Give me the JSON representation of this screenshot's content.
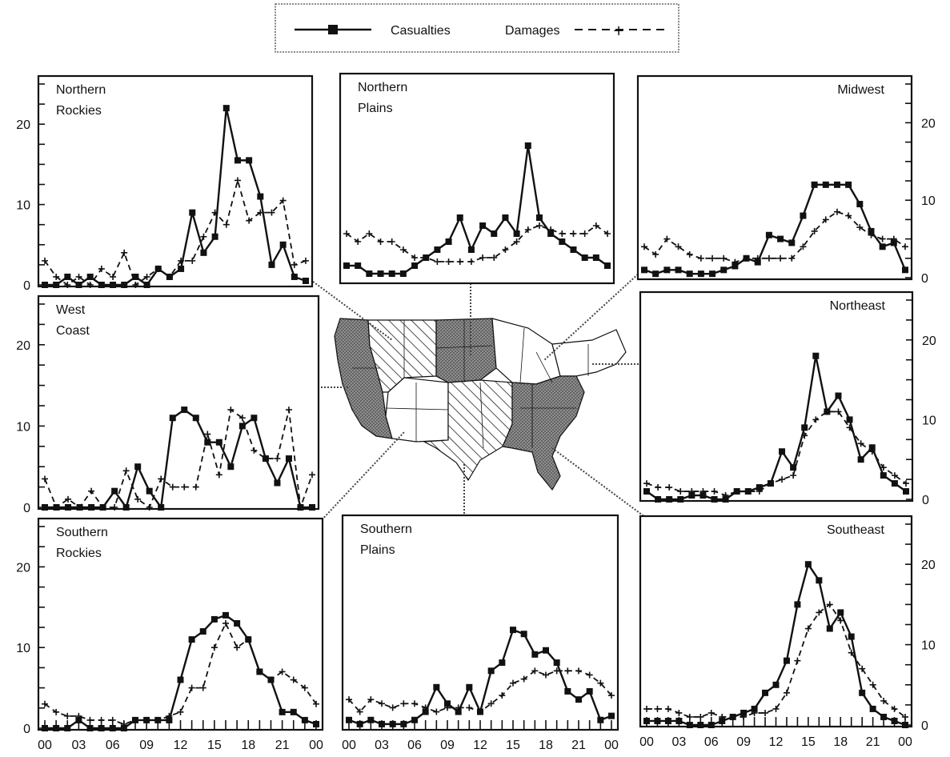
{
  "legend": {
    "casualties": "Casualties",
    "damages": "Damages",
    "position": "top-center"
  },
  "chart_data": [
    {
      "type": "line",
      "title": "Northern Rockies",
      "title_lines": [
        "Northern",
        "Rockies"
      ],
      "hours": [
        0,
        1,
        2,
        3,
        4,
        5,
        6,
        7,
        8,
        9,
        10,
        11,
        12,
        13,
        14,
        15,
        16,
        17,
        18,
        19,
        20,
        21,
        22,
        23
      ],
      "x_tick_labels": [],
      "y_ticks": [
        0,
        10,
        20
      ],
      "y_axis_side": "left",
      "ylim": [
        0,
        25
      ],
      "series": [
        {
          "name": "Casualties",
          "values": [
            0,
            0,
            1,
            0,
            1,
            0,
            0,
            0,
            1,
            0,
            2,
            1,
            2,
            9,
            4,
            6,
            22,
            15.5,
            15.5,
            11,
            2.5,
            5,
            1,
            0.5
          ]
        },
        {
          "name": "Damages",
          "values": [
            3,
            1,
            0,
            1,
            0,
            2,
            1,
            4,
            0,
            1,
            2,
            1,
            3,
            3,
            6,
            9,
            7.5,
            13,
            8,
            9,
            9,
            10.5,
            2.5,
            3
          ]
        }
      ]
    },
    {
      "type": "line",
      "title": "Northern Plains",
      "title_lines": [
        "Northern",
        "Plains"
      ],
      "hours": [
        0,
        1,
        2,
        3,
        4,
        5,
        6,
        7,
        8,
        9,
        10,
        11,
        12,
        13,
        14,
        15,
        16,
        17,
        18,
        19,
        20,
        21,
        22,
        23
      ],
      "x_tick_labels": [],
      "y_ticks": [],
      "y_axis_side": "none",
      "ylim": [
        0,
        25
      ],
      "series": [
        {
          "name": "Casualties",
          "values": [
            2,
            2,
            1,
            1,
            1,
            1,
            2,
            3,
            4,
            5,
            8,
            4,
            7,
            6,
            8,
            6,
            17,
            8,
            6,
            5,
            4,
            3,
            3,
            2
          ]
        },
        {
          "name": "Damages",
          "values": [
            6,
            5,
            6,
            5,
            5,
            4,
            3,
            3,
            2.5,
            2.5,
            2.5,
            2.5,
            3,
            3,
            4,
            5,
            6.5,
            7,
            6.5,
            6,
            6,
            6,
            7,
            6
          ]
        }
      ]
    },
    {
      "type": "line",
      "title": "Midwest",
      "title_lines": [
        "Midwest"
      ],
      "hours": [
        0,
        1,
        2,
        3,
        4,
        5,
        6,
        7,
        8,
        9,
        10,
        11,
        12,
        13,
        14,
        15,
        16,
        17,
        18,
        19,
        20,
        21,
        22,
        23
      ],
      "x_tick_labels": [],
      "y_ticks": [
        0,
        10,
        20
      ],
      "y_axis_side": "right",
      "ylim": [
        0,
        25
      ],
      "series": [
        {
          "name": "Casualties",
          "values": [
            1,
            0.5,
            1,
            1,
            0.5,
            0.5,
            0.5,
            1,
            1.5,
            2.5,
            2,
            5.5,
            5,
            4.5,
            8,
            12,
            12,
            12,
            12,
            9.5,
            6,
            4,
            4.5,
            1
          ]
        },
        {
          "name": "Damages",
          "values": [
            4,
            3,
            5,
            4,
            3,
            2.5,
            2.5,
            2.5,
            2,
            2.5,
            2.5,
            2.5,
            2.5,
            2.5,
            4,
            6,
            7.5,
            8.5,
            8,
            6.5,
            5.5,
            5,
            5,
            4
          ]
        }
      ]
    },
    {
      "type": "line",
      "title": "West Coast",
      "title_lines": [
        "West",
        "Coast"
      ],
      "hours": [
        0,
        1,
        2,
        3,
        4,
        5,
        6,
        7,
        8,
        9,
        10,
        11,
        12,
        13,
        14,
        15,
        16,
        17,
        18,
        19,
        20,
        21,
        22,
        23
      ],
      "x_tick_labels": [],
      "y_ticks": [
        0,
        10,
        20
      ],
      "y_axis_side": "left",
      "ylim": [
        0,
        25
      ],
      "series": [
        {
          "name": "Casualties",
          "values": [
            0,
            0,
            0,
            0,
            0,
            0,
            2,
            0,
            5,
            2,
            0,
            11,
            12,
            11,
            8,
            8,
            5,
            10,
            11,
            6,
            3,
            6,
            0,
            0
          ]
        },
        {
          "name": "Damages",
          "values": [
            3.5,
            0,
            1,
            0,
            2,
            0,
            0,
            4.5,
            1,
            0,
            3.5,
            2.5,
            2.5,
            2.5,
            9,
            4,
            12,
            11,
            7,
            6,
            6,
            12,
            0,
            4
          ]
        }
      ]
    },
    {
      "type": "line",
      "title": "Northeast",
      "title_lines": [
        "Northeast"
      ],
      "hours": [
        0,
        1,
        2,
        3,
        4,
        5,
        6,
        7,
        8,
        9,
        10,
        11,
        12,
        13,
        14,
        15,
        16,
        17,
        18,
        19,
        20,
        21,
        22,
        23
      ],
      "x_tick_labels": [],
      "y_ticks": [
        0,
        10,
        20
      ],
      "y_axis_side": "right",
      "ylim": [
        0,
        25
      ],
      "series": [
        {
          "name": "Casualties",
          "values": [
            1,
            0,
            0,
            0,
            0.5,
            0.5,
            0,
            0,
            1,
            1,
            1.5,
            2,
            6,
            4,
            9,
            18,
            11,
            13,
            10,
            5,
            6.5,
            3,
            2,
            1
          ]
        },
        {
          "name": "Damages",
          "values": [
            2,
            1.5,
            1.5,
            1,
            1,
            1,
            1,
            0.5,
            1,
            1,
            1,
            2,
            2.5,
            3,
            8,
            10,
            11,
            11,
            9,
            7,
            6,
            4,
            3,
            2
          ]
        }
      ]
    },
    {
      "type": "line",
      "title": "Southern Rockies",
      "title_lines": [
        "Southern",
        "Rockies"
      ],
      "hours": [
        0,
        1,
        2,
        3,
        4,
        5,
        6,
        7,
        8,
        9,
        10,
        11,
        12,
        13,
        14,
        15,
        16,
        17,
        18,
        19,
        20,
        21,
        22,
        23,
        24
      ],
      "x_tick_labels": [
        "00",
        "03",
        "06",
        "09",
        "12",
        "15",
        "18",
        "21",
        "00"
      ],
      "y_ticks": [
        0,
        10,
        20
      ],
      "y_axis_side": "left",
      "ylim": [
        0,
        25
      ],
      "series": [
        {
          "name": "Casualties",
          "values": [
            0,
            0,
            0,
            1,
            0,
            0,
            0,
            0,
            1,
            1,
            1,
            1,
            6,
            11,
            12,
            13.5,
            14,
            13,
            11,
            7,
            6,
            2,
            2,
            1,
            0.5
          ]
        },
        {
          "name": "Damages",
          "values": [
            3,
            2,
            1.5,
            1.5,
            1,
            1,
            1,
            0.5,
            1,
            1,
            1,
            1.5,
            2,
            5,
            5,
            10,
            13,
            10,
            11,
            7,
            6,
            7,
            6,
            5,
            3
          ]
        }
      ]
    },
    {
      "type": "line",
      "title": "Southern Plains",
      "title_lines": [
        "Southern",
        "Plains"
      ],
      "hours": [
        0,
        1,
        2,
        3,
        4,
        5,
        6,
        7,
        8,
        9,
        10,
        11,
        12,
        13,
        14,
        15,
        16,
        17,
        18,
        19,
        20,
        21,
        22,
        23,
        24
      ],
      "x_tick_labels": [
        "00",
        "03",
        "06",
        "09",
        "12",
        "15",
        "18",
        "21",
        "00"
      ],
      "y_ticks": [],
      "y_axis_side": "none",
      "ylim": [
        0,
        25
      ],
      "series": [
        {
          "name": "Casualties",
          "values": [
            1,
            0.5,
            1,
            0.5,
            0.5,
            0.5,
            1,
            2,
            5,
            3,
            2,
            5,
            2,
            7,
            8,
            12,
            11.5,
            9,
            9.5,
            8,
            4.5,
            3.5,
            4.5,
            1,
            1.5
          ]
        },
        {
          "name": "Damages",
          "values": [
            3.5,
            2,
            3.5,
            3,
            2.5,
            3,
            3,
            2.5,
            2,
            2.5,
            2.5,
            2.5,
            2,
            3,
            4,
            5.5,
            6,
            7,
            6.5,
            7,
            7,
            7,
            6.5,
            5.5,
            4
          ]
        }
      ]
    },
    {
      "type": "line",
      "title": "Southeast",
      "title_lines": [
        "Southeast"
      ],
      "hours": [
        0,
        1,
        2,
        3,
        4,
        5,
        6,
        7,
        8,
        9,
        10,
        11,
        12,
        13,
        14,
        15,
        16,
        17,
        18,
        19,
        20,
        21,
        22,
        23,
        24
      ],
      "x_tick_labels": [
        "00",
        "03",
        "06",
        "09",
        "12",
        "15",
        "18",
        "21",
        "00"
      ],
      "y_ticks": [
        0,
        10,
        20
      ],
      "y_axis_side": "right",
      "ylim": [
        0,
        25
      ],
      "series": [
        {
          "name": "Casualties",
          "values": [
            0.5,
            0.5,
            0.5,
            0.5,
            0,
            0,
            0,
            0.5,
            1,
            1.5,
            2,
            4,
            5,
            8,
            15,
            20,
            18,
            12,
            14,
            11,
            4,
            2,
            1,
            0.5,
            0
          ]
        },
        {
          "name": "Damages",
          "values": [
            2,
            2,
            2,
            1.5,
            1,
            1,
            1.5,
            1,
            1,
            1,
            1.5,
            1.5,
            2,
            4,
            8,
            12,
            14,
            15,
            13,
            9,
            7,
            5,
            3,
            2,
            1
          ]
        }
      ]
    }
  ]
}
